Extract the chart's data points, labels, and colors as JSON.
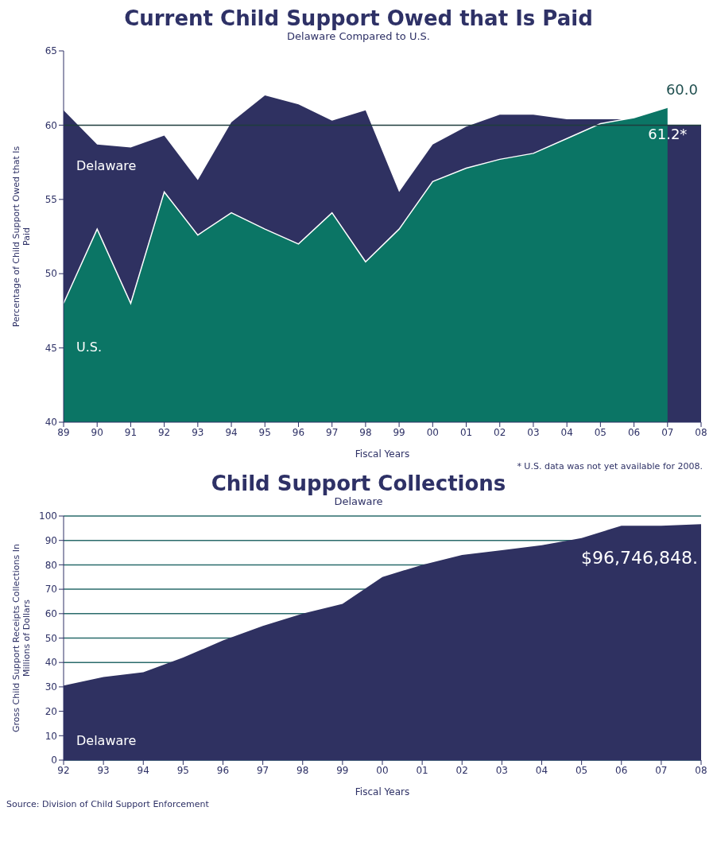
{
  "chart_data": [
    {
      "type": "area",
      "title": "Current Child Support Owed that Is Paid",
      "subtitle": "Delaware Compared to U.S.",
      "xlabel": "Fiscal Years",
      "ylabel": "Percentage of Child Support Owed that Is Paid",
      "categories": [
        "89",
        "90",
        "91",
        "92",
        "93",
        "94",
        "95",
        "96",
        "97",
        "98",
        "99",
        "00",
        "01",
        "02",
        "03",
        "04",
        "05",
        "06",
        "07",
        "08"
      ],
      "series": [
        {
          "name": "Delaware",
          "color": "#2f3161",
          "values": [
            61.0,
            58.7,
            58.5,
            59.3,
            56.3,
            60.2,
            62.0,
            61.4,
            60.3,
            61.0,
            55.5,
            58.7,
            59.9,
            60.7,
            60.7,
            60.4,
            60.4,
            60.4,
            60.0,
            60.0
          ]
        },
        {
          "name": "U.S.",
          "color": "#0b7565",
          "values": [
            48.0,
            53.0,
            48.0,
            55.5,
            52.6,
            54.1,
            53.0,
            52.0,
            54.1,
            50.8,
            53.0,
            56.2,
            57.1,
            57.7,
            58.1,
            59.1,
            60.1,
            60.5,
            61.2,
            null
          ]
        }
      ],
      "ylim": [
        40,
        65
      ],
      "yticks": [
        40,
        45,
        50,
        55,
        60,
        65
      ],
      "grid": false,
      "legend": false,
      "ref_lines": [
        {
          "axis": "y",
          "value": 60,
          "color": "#1f3d3d"
        }
      ],
      "annotations": [
        {
          "text": "60.0",
          "x": "08",
          "y": 60.0
        },
        {
          "text": "61.2*",
          "x": "07",
          "y": 61.2
        },
        "* U.S. data was not yet available for 2008."
      ]
    },
    {
      "type": "area",
      "title": "Child Support Collections",
      "subtitle": "Delaware",
      "xlabel": "Fiscal Years",
      "ylabel": "Gross Child Support Receipts Collections In Millions of Dollars",
      "categories": [
        "92",
        "93",
        "94",
        "95",
        "96",
        "97",
        "98",
        "99",
        "00",
        "01",
        "02",
        "03",
        "04",
        "05",
        "06",
        "07",
        "08"
      ],
      "series": [
        {
          "name": "Delaware",
          "color": "#2f3161",
          "values": [
            30.5,
            34,
            36,
            42,
            49,
            55,
            60,
            64,
            75,
            80,
            84,
            86,
            88,
            91,
            96,
            96,
            96.7
          ]
        }
      ],
      "ylim": [
        0,
        100
      ],
      "yticks": [
        0,
        10,
        20,
        30,
        40,
        50,
        60,
        70,
        80,
        90,
        100
      ],
      "grid": "y",
      "legend": false,
      "annotations": [
        {
          "text": "$96,746,848.",
          "x": "08",
          "y": 96.7
        },
        "Source: Division of Child Support Enforcement"
      ]
    }
  ]
}
